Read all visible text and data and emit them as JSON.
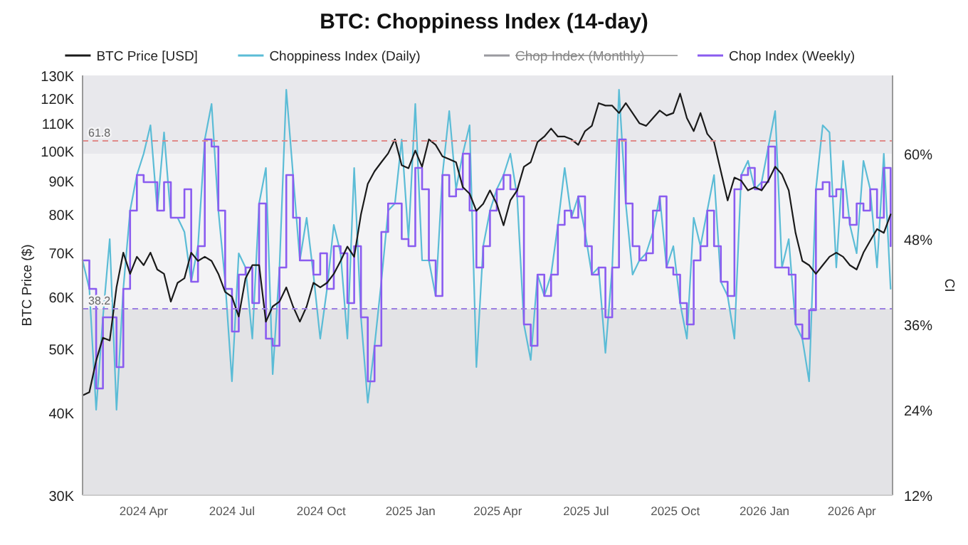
{
  "chart_data": {
    "type": "line",
    "title": "BTC: Choppiness Index (14-day)",
    "ylabel": "BTC Price ($)",
    "y2label": "CI",
    "x": [
      "2024-01-29",
      "2024-02-05",
      "2024-02-12",
      "2024-02-19",
      "2024-02-26",
      "2024-03-04",
      "2024-03-11",
      "2024-03-18",
      "2024-03-25",
      "2024-04-01",
      "2024-04-08",
      "2024-04-15",
      "2024-04-22",
      "2024-04-29",
      "2024-05-06",
      "2024-05-13",
      "2024-05-20",
      "2024-05-27",
      "2024-06-03",
      "2024-06-10",
      "2024-06-17",
      "2024-06-24",
      "2024-07-01",
      "2024-07-08",
      "2024-07-15",
      "2024-07-22",
      "2024-07-29",
      "2024-08-05",
      "2024-08-12",
      "2024-08-19",
      "2024-08-26",
      "2024-09-02",
      "2024-09-09",
      "2024-09-16",
      "2024-09-23",
      "2024-09-30",
      "2024-10-07",
      "2024-10-14",
      "2024-10-21",
      "2024-10-28",
      "2024-11-04",
      "2024-11-11",
      "2024-11-18",
      "2024-11-25",
      "2024-12-02",
      "2024-12-09",
      "2024-12-16",
      "2024-12-23",
      "2024-12-30",
      "2025-01-06",
      "2025-01-13",
      "2025-01-20",
      "2025-01-27",
      "2025-02-03",
      "2025-02-10",
      "2025-02-17",
      "2025-02-24",
      "2025-03-03",
      "2025-03-10",
      "2025-03-17",
      "2025-03-24",
      "2025-03-31",
      "2025-04-07",
      "2025-04-14",
      "2025-04-21",
      "2025-04-28",
      "2025-05-05",
      "2025-05-12",
      "2025-05-19",
      "2025-05-26",
      "2025-06-02",
      "2025-06-09",
      "2025-06-16",
      "2025-06-23",
      "2025-06-30",
      "2025-07-07",
      "2025-07-14",
      "2025-07-21",
      "2025-07-28",
      "2025-08-04",
      "2025-08-11",
      "2025-08-18",
      "2025-08-25",
      "2025-09-01",
      "2025-09-08",
      "2025-09-15",
      "2025-09-22",
      "2025-09-29",
      "2025-10-06",
      "2025-10-13",
      "2025-10-20",
      "2025-10-27",
      "2025-11-03",
      "2025-11-10",
      "2025-11-17",
      "2025-11-24",
      "2025-12-01",
      "2025-12-08",
      "2025-12-15",
      "2025-12-22",
      "2025-12-29",
      "2026-01-05",
      "2026-01-12",
      "2026-01-19",
      "2026-01-26",
      "2026-02-02",
      "2026-02-09",
      "2026-02-16",
      "2026-02-23",
      "2026-03-02",
      "2026-03-09",
      "2026-03-16",
      "2026-03-23",
      "2026-03-30",
      "2026-04-06",
      "2026-04-13",
      "2026-04-20",
      "2026-04-27",
      "2026-05-04",
      "2026-05-11"
    ],
    "series": [
      {
        "name": "BTC Price [USD]",
        "color": "#1a1a1a",
        "axis": "y",
        "values": [
          42500,
          43000,
          48000,
          52000,
          51500,
          62000,
          70000,
          65000,
          69000,
          67000,
          70000,
          66000,
          65000,
          59000,
          63000,
          64000,
          70000,
          68000,
          69000,
          68000,
          65000,
          61000,
          60000,
          56000,
          64000,
          67000,
          67000,
          55000,
          58000,
          59000,
          62000,
          58000,
          55000,
          58000,
          63000,
          62000,
          63000,
          65000,
          68000,
          71500,
          69000,
          80000,
          89000,
          93000,
          96000,
          99000,
          104000,
          95000,
          94000,
          100000,
          94500,
          104000,
          102000,
          98000,
          97000,
          96000,
          88000,
          86000,
          81000,
          83000,
          87000,
          83000,
          77000,
          84000,
          87000,
          94500,
          96000,
          103000,
          105000,
          108000,
          105000,
          105000,
          104000,
          102000,
          107000,
          109000,
          118000,
          117000,
          117000,
          114000,
          118000,
          114000,
          110000,
          109000,
          112000,
          115000,
          113000,
          114000,
          122000,
          112000,
          107000,
          114000,
          106000,
          103000,
          93000,
          84000,
          91000,
          90000,
          87000,
          88000,
          87000,
          90000,
          94500,
          92000,
          87000,
          75000,
          68000,
          67000,
          65000,
          67000,
          69000,
          70000,
          69000,
          67000,
          66000,
          70000,
          73000,
          76000,
          75000,
          80000
        ]
      },
      {
        "name": "Choppiness Index (Daily)",
        "color": "#5bbcd6",
        "axis": "y2",
        "values": [
          45,
          41,
          24,
          37,
          48,
          24,
          41,
          52,
          57,
          60,
          64,
          52,
          63,
          51,
          51,
          49,
          42,
          47,
          62,
          67,
          52,
          42,
          28,
          46,
          44,
          34,
          53,
          58,
          29,
          44,
          69,
          57,
          45,
          51,
          43,
          34,
          41,
          50,
          46,
          34,
          58,
          37,
          25,
          33,
          42,
          52,
          53,
          62,
          48,
          67,
          45,
          45,
          40,
          57,
          66,
          55,
          60,
          64,
          30,
          47,
          52,
          55,
          57,
          60,
          54,
          36,
          31,
          43,
          40,
          43,
          50,
          58,
          51,
          54,
          49,
          43,
          44,
          32,
          44,
          69,
          53,
          43,
          45,
          46,
          49,
          54,
          44,
          47,
          39,
          34,
          51,
          47,
          52,
          57,
          42,
          40,
          34,
          57,
          59,
          55,
          56,
          61,
          66,
          44,
          48,
          36,
          34,
          28,
          55,
          64,
          63,
          44,
          59,
          50,
          46,
          59,
          55,
          44,
          60,
          41
        ]
      },
      {
        "name": "Chop Index (Monthly)",
        "color": "#9a9aa0",
        "axis": "y2",
        "values": [
          null,
          null,
          null,
          null,
          null,
          null,
          null,
          null,
          null,
          null,
          null,
          null,
          null,
          null,
          null,
          null,
          null,
          null,
          null,
          null,
          null,
          null,
          null,
          null,
          null,
          null,
          null,
          null,
          null,
          null,
          null,
          null,
          null,
          null,
          null,
          null,
          null,
          null,
          null,
          null,
          null,
          null,
          null,
          null,
          null,
          null,
          null,
          null,
          null,
          null,
          null,
          null,
          null,
          null,
          null,
          null,
          null,
          null,
          null,
          null,
          null,
          null,
          null,
          null,
          null,
          null,
          null,
          null,
          null,
          null,
          null,
          null,
          null,
          null,
          null,
          null,
          null,
          null,
          null,
          null,
          null,
          null,
          null,
          null,
          null,
          null,
          null,
          null,
          null,
          null,
          null,
          null,
          null,
          null,
          null,
          null,
          null,
          null,
          null,
          null,
          null,
          null,
          null,
          null,
          null,
          null,
          null,
          null,
          null,
          null,
          null,
          null,
          null,
          null,
          null,
          null,
          null,
          null,
          null,
          null
        ]
      },
      {
        "name": "Chop Index (Weekly)",
        "color": "#8a5cf0",
        "axis": "y2",
        "type": "step",
        "values": [
          45,
          41,
          27,
          37,
          37,
          30,
          41,
          52,
          57,
          56,
          56,
          52,
          56,
          51,
          51,
          55,
          42,
          47,
          62,
          61,
          52,
          41,
          35,
          43,
          44,
          39,
          53,
          34,
          33,
          44,
          57,
          51,
          45,
          45,
          43,
          46,
          41,
          47,
          46,
          39,
          47,
          37,
          28,
          33,
          49,
          53,
          53,
          48,
          47,
          58,
          55,
          45,
          40,
          57,
          54,
          55,
          60,
          52,
          44,
          47,
          52,
          55,
          57,
          55,
          54,
          36,
          33,
          43,
          40,
          43,
          50,
          52,
          51,
          54,
          47,
          43,
          44,
          37,
          44,
          62,
          53,
          47,
          45,
          46,
          52,
          54,
          44,
          43,
          39,
          36,
          45,
          47,
          52,
          47,
          42,
          40,
          55,
          57,
          58,
          55,
          56,
          61,
          44,
          44,
          43,
          36,
          34,
          38,
          55,
          56,
          54,
          55,
          51,
          50,
          53,
          52,
          55,
          51,
          58,
          47
        ]
      }
    ],
    "xlim": [
      "2024-01-29",
      "2026-05-13"
    ],
    "xticks": [
      {
        "value": "2024-04-01",
        "label": "2024 Apr"
      },
      {
        "value": "2024-07-01",
        "label": "2024 Jul"
      },
      {
        "value": "2024-10-01",
        "label": "2024 Oct"
      },
      {
        "value": "2025-01-01",
        "label": "2025 Jan"
      },
      {
        "value": "2025-04-01",
        "label": "2025 Apr"
      },
      {
        "value": "2025-07-01",
        "label": "2025 Jul"
      },
      {
        "value": "2025-10-01",
        "label": "2025 Oct"
      },
      {
        "value": "2026-01-01",
        "label": "2026 Jan"
      },
      {
        "value": "2026-04-01",
        "label": "2026 Apr"
      }
    ],
    "log": "y",
    "ylim": [
      30000,
      130000
    ],
    "yticks": [
      {
        "value": 30000,
        "label": "30K"
      },
      {
        "value": 40000,
        "label": "40K"
      },
      {
        "value": 50000,
        "label": "50K"
      },
      {
        "value": 60000,
        "label": "60K"
      },
      {
        "value": 70000,
        "label": "70K"
      },
      {
        "value": 80000,
        "label": "80K"
      },
      {
        "value": 90000,
        "label": "90K"
      },
      {
        "value": 100000,
        "label": "100K"
      },
      {
        "value": 110000,
        "label": "110K"
      },
      {
        "value": 120000,
        "label": "120K"
      },
      {
        "value": 130000,
        "label": "130K"
      }
    ],
    "y2lim": [
      12,
      71
    ],
    "y2ticks": [
      {
        "value": 12,
        "label": "12%"
      },
      {
        "value": 24,
        "label": "24%"
      },
      {
        "value": 36,
        "label": "36%"
      },
      {
        "value": 48,
        "label": "48%"
      },
      {
        "value": 60,
        "label": "60%"
      }
    ],
    "bands": [
      {
        "axis": "y2",
        "from": 12,
        "to": 38.2,
        "color": "#e3e3e6"
      },
      {
        "axis": "y2",
        "from": 38.2,
        "to": 60,
        "color": "#f3f3f5"
      },
      {
        "axis": "y2",
        "from": 60,
        "to": 71,
        "color": "#e8e8ec"
      }
    ],
    "ref_lines": [
      {
        "axis": "y2",
        "value": 61.8,
        "label": "61.8",
        "color": "#e08a8a",
        "line_style": "dashed"
      },
      {
        "axis": "y2",
        "value": 38.2,
        "label": "38.2",
        "color": "#9b7fe0",
        "line_style": "dashed"
      }
    ],
    "legend": "top",
    "grid": false,
    "marker": "none",
    "line_style": "solid"
  }
}
